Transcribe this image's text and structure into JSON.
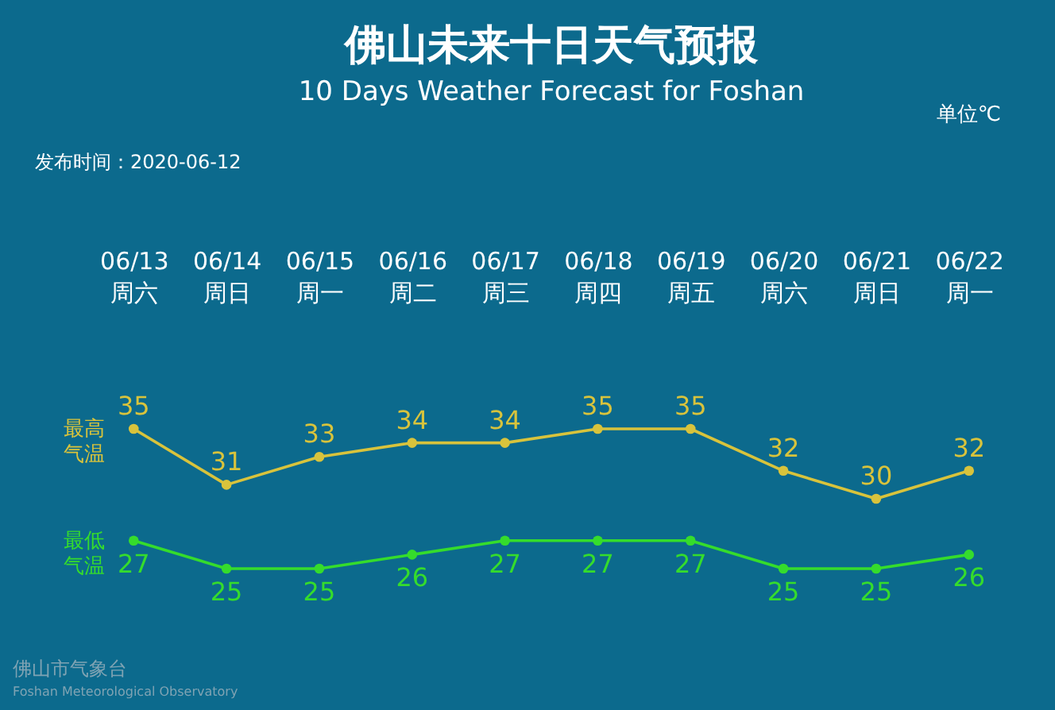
{
  "chart_data": {
    "type": "line",
    "title": "佛山未来十日天气预报",
    "subtitle": "10 Days Weather Forecast for Foshan",
    "categories": [
      "06/13\n周六",
      "06/14\n周日",
      "06/15\n周一",
      "06/16\n周二",
      "06/17\n周三",
      "06/18\n周四",
      "06/19\n周五",
      "06/20\n周六",
      "06/21\n周日",
      "06/22\n周一"
    ],
    "series": [
      {
        "name": "最高气温",
        "color": "#d8c33c",
        "values": [
          35,
          31,
          33,
          34,
          34,
          35,
          35,
          32,
          30,
          32
        ]
      },
      {
        "name": "最低气温",
        "color": "#35dc2c",
        "values": [
          27,
          25,
          25,
          26,
          27,
          27,
          27,
          25,
          25,
          26
        ]
      }
    ],
    "tick_labels": "x",
    "data_labels": true,
    "marker": "circle",
    "line_style": "solid",
    "legend": false,
    "grid": false,
    "annotations": [
      "单位℃",
      "发布时间：2020-06-12",
      "佛山市气象台",
      "Foshan Meteorological Observatory"
    ]
  }
}
